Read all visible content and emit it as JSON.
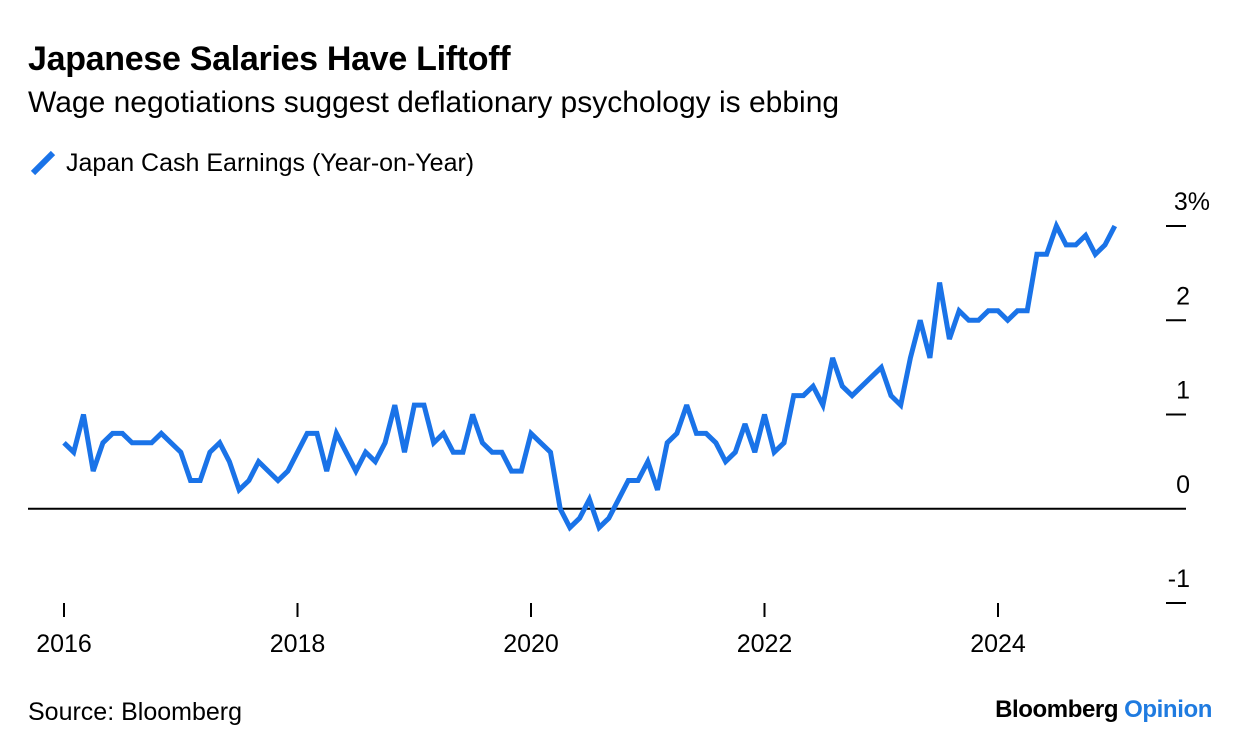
{
  "header": {
    "title": "Japanese Salaries Have Liftoff",
    "subtitle": "Wage negotiations suggest deflationary psychology is ebbing"
  },
  "footer": {
    "source": "Source: Bloomberg",
    "brand_primary": "Bloomberg",
    "brand_secondary": "Opinion"
  },
  "colors": {
    "series": "#1a73e8",
    "brand_accent": "#1f7be0",
    "axis": "#000000"
  },
  "chart_data": {
    "type": "line",
    "title": "Japanese Salaries Have Liftoff",
    "subtitle": "Wage negotiations suggest deflationary psychology is ebbing",
    "x_start": "2016-01",
    "x_frequency": "monthly",
    "xlim": [
      "2016-01",
      "2025-12"
    ],
    "ylim": [
      -1,
      3
    ],
    "x_ticks": [
      {
        "date": "2016-01",
        "label": "2016"
      },
      {
        "date": "2018-01",
        "label": "2018"
      },
      {
        "date": "2020-01",
        "label": "2020"
      },
      {
        "date": "2022-01",
        "label": "2022"
      },
      {
        "date": "2024-01",
        "label": "2024"
      }
    ],
    "y_ticks": [
      {
        "value": 3,
        "label": "3%"
      },
      {
        "value": 2,
        "label": "2"
      },
      {
        "value": 1,
        "label": "1"
      },
      {
        "value": 0,
        "label": "0"
      },
      {
        "value": -1,
        "label": "-1"
      }
    ],
    "zero_line": true,
    "grid": false,
    "legend_position": "top-left",
    "series": [
      {
        "name": "Japan Cash Earnings (Year-on-Year)",
        "values": [
          0.7,
          0.6,
          1.0,
          0.4,
          0.7,
          0.8,
          0.8,
          0.7,
          0.7,
          0.7,
          0.8,
          0.7,
          0.6,
          0.3,
          0.3,
          0.6,
          0.7,
          0.5,
          0.2,
          0.3,
          0.5,
          0.4,
          0.3,
          0.4,
          0.6,
          0.8,
          0.8,
          0.4,
          0.8,
          0.6,
          0.4,
          0.6,
          0.5,
          0.7,
          1.1,
          0.6,
          1.1,
          1.1,
          0.7,
          0.8,
          0.6,
          0.6,
          1.0,
          0.7,
          0.6,
          0.6,
          0.4,
          0.4,
          0.8,
          0.7,
          0.6,
          0.0,
          -0.2,
          -0.1,
          0.1,
          -0.2,
          -0.1,
          0.1,
          0.3,
          0.3,
          0.5,
          0.2,
          0.7,
          0.8,
          1.1,
          0.8,
          0.8,
          0.7,
          0.5,
          0.6,
          0.9,
          0.6,
          1.0,
          0.6,
          0.7,
          1.2,
          1.2,
          1.3,
          1.1,
          1.6,
          1.3,
          1.2,
          1.3,
          1.4,
          1.5,
          1.2,
          1.1,
          1.6,
          2.0,
          1.6,
          2.4,
          1.8,
          2.1,
          2.0,
          2.0,
          2.1,
          2.1,
          2.0,
          2.1,
          2.1,
          2.7,
          2.7,
          3.0,
          2.8,
          2.8,
          2.9,
          2.7,
          2.8,
          3.0
        ]
      }
    ]
  }
}
